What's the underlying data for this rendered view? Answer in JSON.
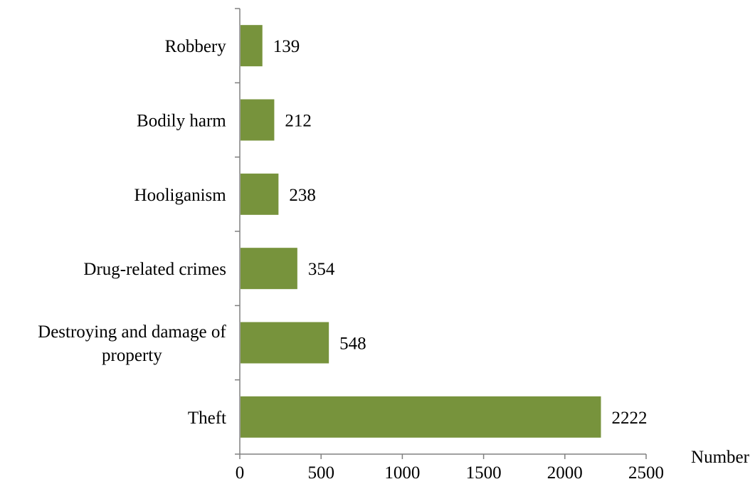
{
  "chart_data": {
    "type": "bar",
    "orientation": "horizontal",
    "categories": [
      [
        "Theft"
      ],
      [
        "Destroying and damage of",
        "property"
      ],
      [
        "Drug-related crimes"
      ],
      [
        "Hooliganism"
      ],
      [
        "Bodily harm"
      ],
      [
        "Robbery"
      ]
    ],
    "values": [
      2222,
      548,
      354,
      238,
      212,
      139
    ],
    "data_labels": [
      "2222",
      "548",
      "354",
      "238",
      "212",
      "139"
    ],
    "xlabel": "Number",
    "xlim": [
      0,
      2500
    ],
    "xticks": [
      "0",
      "500",
      "1000",
      "1500",
      "2000",
      "2500"
    ],
    "grid": false,
    "legend": "none",
    "bar_color": "#77933c"
  }
}
